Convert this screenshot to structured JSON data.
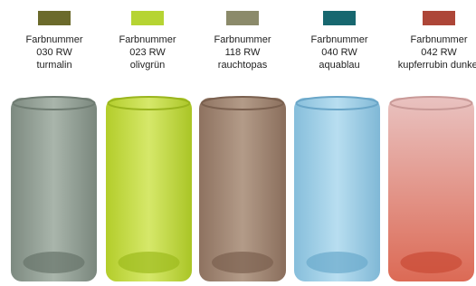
{
  "items": [
    {
      "swatch": "#6b6a2b",
      "lines": [
        "Farbnummer",
        "030 RW",
        "turmalin"
      ]
    },
    {
      "swatch": "#b6d433",
      "lines": [
        "Farbnummer",
        "023 RW",
        "olivgrün"
      ]
    },
    {
      "swatch": "#8b8a6a",
      "lines": [
        "Farbnummer",
        "118 RW",
        "rauchtopas"
      ]
    },
    {
      "swatch": "#17676f",
      "lines": [
        "Farbnummer",
        "040 RW",
        "aquablau"
      ]
    },
    {
      "swatch": "#ad4638",
      "lines": [
        "Farbnummer",
        "042 RW",
        "kupferrubin dunkel"
      ]
    }
  ]
}
